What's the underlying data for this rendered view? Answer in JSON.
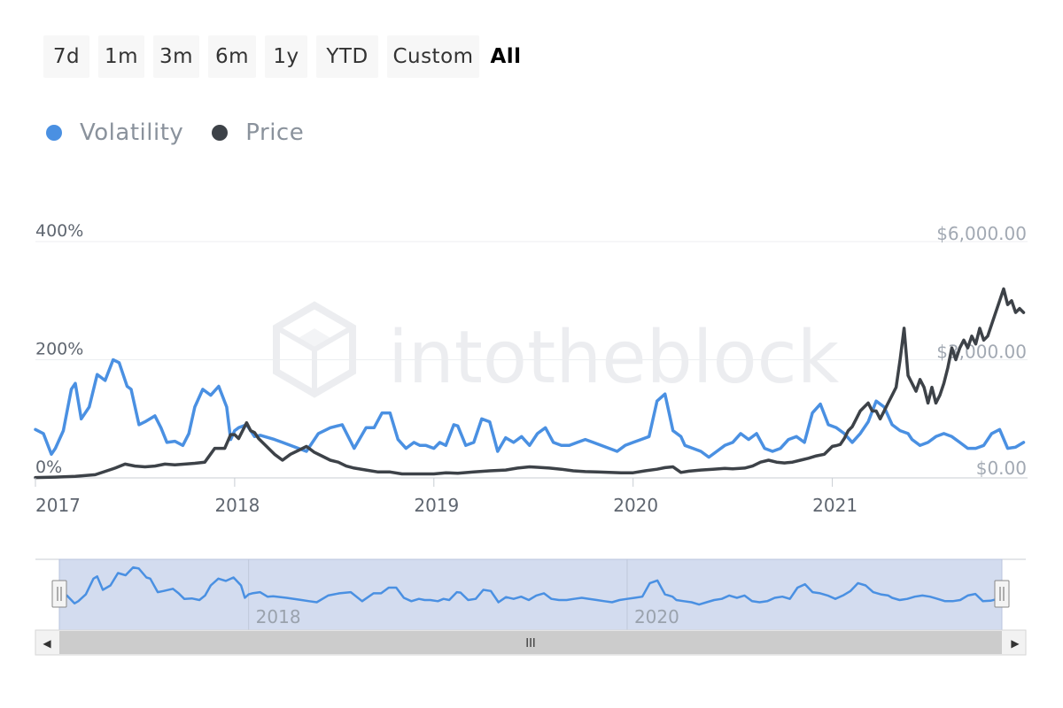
{
  "range_buttons": [
    "7d",
    "1m",
    "3m",
    "6m",
    "1y",
    "YTD",
    "Custom",
    "All"
  ],
  "range_active": "All",
  "legend": [
    {
      "label": "Volatility",
      "color": "#4a90e2"
    },
    {
      "label": "Price",
      "color": "#3d4248"
    }
  ],
  "watermark": "intotheblock",
  "chart_data": {
    "type": "line",
    "x_start": "2017-01",
    "x_end": "2021-12",
    "x_ticks": [
      "2017",
      "2018",
      "2019",
      "2020",
      "2021"
    ],
    "left_axis": {
      "ticks": [
        "0%",
        "200%",
        "400%"
      ],
      "range": [
        0,
        400
      ]
    },
    "right_axis": {
      "ticks": [
        "$0.00",
        "$3,000.00",
        "$6,000.00"
      ],
      "range": [
        0,
        6000
      ]
    },
    "grid": true,
    "legend_position": "top-left",
    "series": [
      {
        "name": "Volatility",
        "axis": "left",
        "color": "#4a90e2",
        "x": [
          2017.0,
          2017.04,
          2017.08,
          2017.1,
          2017.14,
          2017.18,
          2017.2,
          2017.23,
          2017.27,
          2017.31,
          2017.35,
          2017.39,
          2017.42,
          2017.46,
          2017.48,
          2017.52,
          2017.55,
          2017.6,
          2017.63,
          2017.66,
          2017.7,
          2017.74,
          2017.77,
          2017.8,
          2017.84,
          2017.88,
          2017.92,
          2017.96,
          2017.98,
          2018.0,
          2018.02,
          2018.06,
          2018.1,
          2018.13,
          2018.17,
          2018.2,
          2018.24,
          2018.28,
          2018.32,
          2018.36,
          2018.42,
          2018.48,
          2018.54,
          2018.6,
          2018.66,
          2018.7,
          2018.74,
          2018.78,
          2018.82,
          2018.86,
          2018.9,
          2018.93,
          2018.96,
          2019.0,
          2019.03,
          2019.06,
          2019.1,
          2019.12,
          2019.16,
          2019.2,
          2019.24,
          2019.28,
          2019.32,
          2019.36,
          2019.4,
          2019.44,
          2019.48,
          2019.52,
          2019.56,
          2019.6,
          2019.64,
          2019.68,
          2019.72,
          2019.76,
          2019.8,
          2019.84,
          2019.88,
          2019.92,
          2019.96,
          2020.0,
          2020.04,
          2020.08,
          2020.12,
          2020.16,
          2020.2,
          2020.24,
          2020.26,
          2020.3,
          2020.34,
          2020.38,
          2020.42,
          2020.46,
          2020.5,
          2020.54,
          2020.58,
          2020.62,
          2020.66,
          2020.7,
          2020.74,
          2020.78,
          2020.82,
          2020.86,
          2020.9,
          2020.94,
          2020.98,
          2021.02,
          2021.06,
          2021.1,
          2021.14,
          2021.18,
          2021.22,
          2021.26,
          2021.3,
          2021.34,
          2021.38,
          2021.4,
          2021.44,
          2021.48,
          2021.52,
          2021.56,
          2021.6,
          2021.64,
          2021.68,
          2021.72,
          2021.76,
          2021.8,
          2021.84,
          2021.88,
          2021.92,
          2021.96
        ],
        "values": [
          82,
          75,
          40,
          50,
          80,
          150,
          160,
          100,
          120,
          175,
          165,
          200,
          195,
          155,
          150,
          90,
          95,
          105,
          85,
          60,
          62,
          55,
          75,
          120,
          150,
          140,
          155,
          120,
          65,
          80,
          85,
          90,
          70,
          72,
          68,
          65,
          60,
          55,
          50,
          45,
          75,
          85,
          90,
          50,
          85,
          85,
          110,
          110,
          65,
          50,
          60,
          55,
          55,
          50,
          60,
          55,
          90,
          88,
          55,
          60,
          100,
          95,
          45,
          68,
          60,
          70,
          55,
          75,
          85,
          60,
          55,
          55,
          60,
          65,
          60,
          55,
          50,
          45,
          55,
          60,
          65,
          70,
          130,
          142,
          80,
          70,
          55,
          50,
          45,
          35,
          45,
          55,
          60,
          75,
          65,
          75,
          50,
          45,
          50,
          65,
          70,
          60,
          110,
          125,
          90,
          85,
          75,
          60,
          75,
          95,
          130,
          120,
          90,
          80,
          75,
          65,
          55,
          60,
          70,
          75,
          70,
          60,
          50,
          50,
          55,
          75,
          82,
          50,
          52,
          60
        ]
      },
      {
        "name": "Price",
        "axis": "right",
        "color": "#3d4248",
        "x": [
          2017.0,
          2017.1,
          2017.2,
          2017.3,
          2017.4,
          2017.45,
          2017.5,
          2017.55,
          2017.6,
          2017.65,
          2017.7,
          2017.75,
          2017.8,
          2017.85,
          2017.9,
          2017.95,
          2017.98,
          2018.0,
          2018.02,
          2018.04,
          2018.06,
          2018.08,
          2018.1,
          2018.12,
          2018.16,
          2018.2,
          2018.24,
          2018.28,
          2018.32,
          2018.36,
          2018.4,
          2018.44,
          2018.48,
          2018.52,
          2018.56,
          2018.6,
          2018.66,
          2018.72,
          2018.78,
          2018.84,
          2018.9,
          2018.96,
          2019.0,
          2019.06,
          2019.12,
          2019.2,
          2019.28,
          2019.36,
          2019.42,
          2019.48,
          2019.52,
          2019.58,
          2019.64,
          2019.7,
          2019.76,
          2019.82,
          2019.88,
          2019.94,
          2020.0,
          2020.06,
          2020.12,
          2020.16,
          2020.2,
          2020.24,
          2020.28,
          2020.34,
          2020.4,
          2020.46,
          2020.5,
          2020.56,
          2020.6,
          2020.64,
          2020.68,
          2020.72,
          2020.76,
          2020.8,
          2020.84,
          2020.88,
          2020.92,
          2020.96,
          2021.0,
          2021.02,
          2021.04,
          2021.06,
          2021.08,
          2021.1,
          2021.12,
          2021.14,
          2021.16,
          2021.18,
          2021.2,
          2021.22,
          2021.24,
          2021.26,
          2021.28,
          2021.3,
          2021.32,
          2021.34,
          2021.36,
          2021.38,
          2021.4,
          2021.42,
          2021.44,
          2021.46,
          2021.48,
          2021.5,
          2021.52,
          2021.54,
          2021.56,
          2021.58,
          2021.6,
          2021.62,
          2021.64,
          2021.66,
          2021.68,
          2021.7,
          2021.72,
          2021.74,
          2021.76,
          2021.78,
          2021.8,
          2021.82,
          2021.84,
          2021.86,
          2021.88,
          2021.9,
          2021.92,
          2021.94,
          2021.96
        ],
        "values": [
          10,
          20,
          40,
          80,
          250,
          350,
          300,
          280,
          300,
          350,
          330,
          350,
          370,
          400,
          750,
          750,
          1100,
          1100,
          1000,
          1200,
          1400,
          1200,
          1150,
          1000,
          800,
          600,
          450,
          600,
          700,
          800,
          650,
          550,
          450,
          400,
          300,
          250,
          200,
          150,
          150,
          100,
          100,
          100,
          100,
          130,
          120,
          150,
          180,
          200,
          250,
          280,
          270,
          250,
          220,
          180,
          160,
          150,
          140,
          130,
          130,
          180,
          220,
          260,
          280,
          140,
          170,
          200,
          220,
          240,
          230,
          250,
          300,
          400,
          450,
          400,
          380,
          400,
          450,
          500,
          560,
          600,
          800,
          820,
          850,
          1000,
          1200,
          1300,
          1500,
          1700,
          1800,
          1900,
          1700,
          1700,
          1500,
          1700,
          1900,
          2100,
          2300,
          3000,
          3800,
          2600,
          2400,
          2200,
          2500,
          2300,
          1900,
          2300,
          1900,
          2100,
          2400,
          2800,
          3300,
          3000,
          3300,
          3500,
          3300,
          3600,
          3400,
          3800,
          3500,
          3600,
          3900,
          4200,
          4500,
          4800,
          4400,
          4500,
          4200,
          4300,
          4200
        ]
      }
    ]
  },
  "navigator": {
    "x_ticks": [
      "2018",
      "2020"
    ],
    "scroll_handle": "III",
    "left_arrow": "◀",
    "right_arrow": "▶"
  }
}
